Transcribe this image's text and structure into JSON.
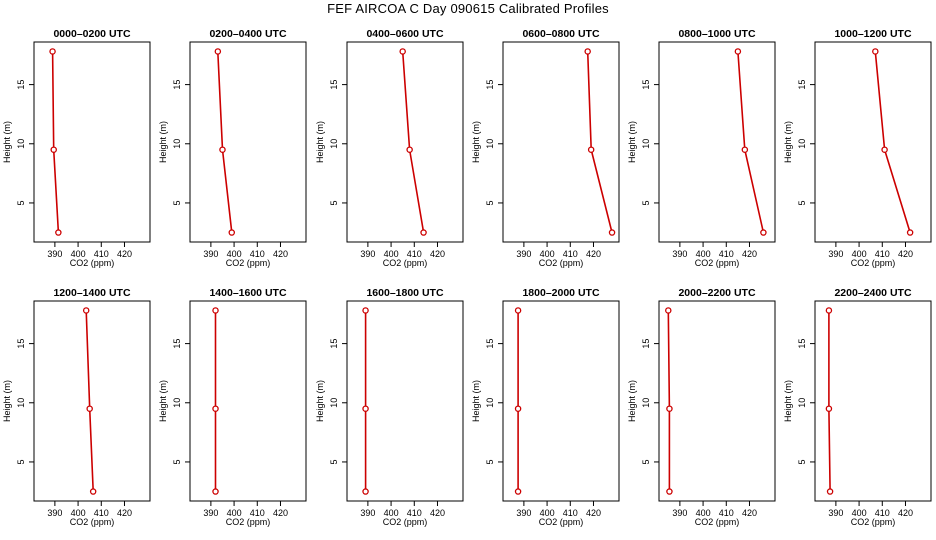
{
  "title": "FEF AIRCOA C  Day 090615  Calibrated Profiles",
  "chart_data": {
    "type": "line",
    "xlabel": "CO2 (ppm)",
    "ylabel": "Height (m)",
    "xlim": [
      381,
      431
    ],
    "ylim": [
      1.7,
      18.6
    ],
    "xticks": [
      390,
      400,
      410,
      420
    ],
    "yticks": [
      5,
      10,
      15
    ],
    "line_color": "#cc0000",
    "panels": [
      {
        "title": "0000–0200 UTC",
        "points": [
          {
            "x": 389,
            "y": 17.8
          },
          {
            "x": 389.5,
            "y": 9.5
          },
          {
            "x": 391.5,
            "y": 2.5
          }
        ]
      },
      {
        "title": "0200–0400 UTC",
        "points": [
          {
            "x": 393,
            "y": 17.8
          },
          {
            "x": 395,
            "y": 9.5
          },
          {
            "x": 399,
            "y": 2.5
          }
        ]
      },
      {
        "title": "0400–0600 UTC",
        "points": [
          {
            "x": 405,
            "y": 17.8
          },
          {
            "x": 408,
            "y": 9.5
          },
          {
            "x": 414,
            "y": 2.5
          }
        ]
      },
      {
        "title": "0600–0800 UTC",
        "points": [
          {
            "x": 417.5,
            "y": 17.8
          },
          {
            "x": 419,
            "y": 9.5
          },
          {
            "x": 428,
            "y": 2.5
          }
        ]
      },
      {
        "title": "0800–1000 UTC",
        "points": [
          {
            "x": 415,
            "y": 17.8
          },
          {
            "x": 418,
            "y": 9.5
          },
          {
            "x": 426,
            "y": 2.5
          }
        ]
      },
      {
        "title": "1000–1200 UTC",
        "points": [
          {
            "x": 407,
            "y": 17.8
          },
          {
            "x": 411,
            "y": 9.5
          },
          {
            "x": 422,
            "y": 2.5
          }
        ]
      },
      {
        "title": "1200–1400 UTC",
        "points": [
          {
            "x": 403.5,
            "y": 17.8
          },
          {
            "x": 405,
            "y": 9.5
          },
          {
            "x": 406.5,
            "y": 2.5
          }
        ]
      },
      {
        "title": "1400–1600 UTC",
        "points": [
          {
            "x": 392,
            "y": 17.8
          },
          {
            "x": 392,
            "y": 9.5
          },
          {
            "x": 392,
            "y": 2.5
          }
        ]
      },
      {
        "title": "1600–1800 UTC",
        "points": [
          {
            "x": 389,
            "y": 17.8
          },
          {
            "x": 389,
            "y": 9.5
          },
          {
            "x": 389,
            "y": 2.5
          }
        ]
      },
      {
        "title": "1800–2000 UTC",
        "points": [
          {
            "x": 387.5,
            "y": 17.8
          },
          {
            "x": 387.5,
            "y": 9.5
          },
          {
            "x": 387.5,
            "y": 2.5
          }
        ]
      },
      {
        "title": "2000–2200 UTC",
        "points": [
          {
            "x": 385,
            "y": 17.8
          },
          {
            "x": 385.5,
            "y": 9.5
          },
          {
            "x": 385.5,
            "y": 2.5
          }
        ]
      },
      {
        "title": "2200–2400 UTC",
        "points": [
          {
            "x": 387,
            "y": 17.8
          },
          {
            "x": 387,
            "y": 9.5
          },
          {
            "x": 387.5,
            "y": 2.5
          }
        ]
      }
    ]
  }
}
